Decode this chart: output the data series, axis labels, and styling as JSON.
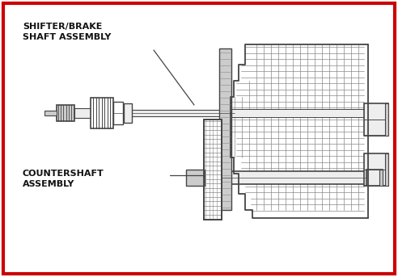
{
  "label_shifter": "SHIFTER/BRAKE\nSHAFT ASSEMBLY",
  "label_counter": "COUNTERSHAFT\nASSEMBLY",
  "bg_color": "#ffffff",
  "border_color": "#cc0000",
  "line_color": "#888888",
  "dark_line": "#444444",
  "light_fill": "#eeeeee",
  "mid_fill": "#cccccc",
  "dark_fill": "#999999",
  "text_color": "#111111",
  "figsize": [
    4.92,
    3.43
  ],
  "dpi": 100
}
